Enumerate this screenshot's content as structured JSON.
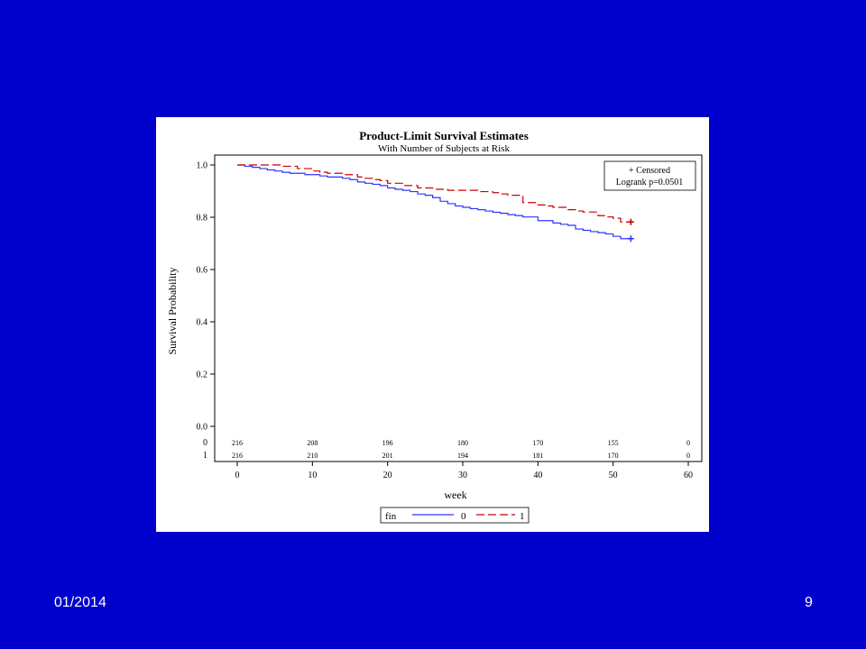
{
  "slide": {
    "background": "#0000cc",
    "footer_date": "01/2014",
    "page_number": "9"
  },
  "chart_data": {
    "type": "line",
    "step": true,
    "title": "Product-Limit Survival Estimates",
    "subtitle": "With Number of Subjects at Risk",
    "xlabel": "week",
    "ylabel": "Survival Probability",
    "xlim": [
      0,
      60
    ],
    "ylim": [
      0.0,
      1.0
    ],
    "xticks": [
      "0",
      "10",
      "20",
      "30",
      "40",
      "50",
      "60"
    ],
    "yticks": [
      "0.0",
      "0.2",
      "0.4",
      "0.6",
      "0.8",
      "1.0"
    ],
    "grid": false,
    "inset_legend": {
      "position": "top-right",
      "censored_label": "+ Censored",
      "logrank_label": "Logrank p=0.0501"
    },
    "legend": {
      "position": "bottom",
      "title": "fin"
    },
    "series": [
      {
        "name": "0",
        "color": "#3333ff",
        "dash": "solid",
        "x": [
          0,
          1,
          2,
          3,
          4,
          5,
          6,
          7,
          8,
          9,
          10,
          11,
          12,
          13,
          14,
          15,
          16,
          17,
          18,
          19,
          20,
          21,
          22,
          23,
          24,
          25,
          26,
          27,
          28,
          29,
          30,
          31,
          32,
          33,
          34,
          35,
          36,
          37,
          38,
          39,
          40,
          41,
          42,
          43,
          44,
          45,
          46,
          47,
          48,
          49,
          50,
          51,
          52
        ],
        "y": [
          1.0,
          0.995,
          0.991,
          0.986,
          0.981,
          0.977,
          0.972,
          0.968,
          0.968,
          0.963,
          0.963,
          0.958,
          0.954,
          0.954,
          0.949,
          0.944,
          0.935,
          0.93,
          0.926,
          0.921,
          0.912,
          0.907,
          0.903,
          0.898,
          0.889,
          0.884,
          0.875,
          0.861,
          0.852,
          0.843,
          0.838,
          0.833,
          0.829,
          0.824,
          0.819,
          0.815,
          0.81,
          0.806,
          0.801,
          0.801,
          0.787,
          0.787,
          0.778,
          0.773,
          0.769,
          0.755,
          0.75,
          0.745,
          0.741,
          0.736,
          0.727,
          0.718,
          0.718
        ],
        "censored_at": 52,
        "censored_y": 0.718
      },
      {
        "name": "1",
        "color": "#cc0000",
        "dash": "dashed",
        "x": [
          0,
          2,
          4,
          6,
          8,
          10,
          11,
          12,
          14,
          16,
          17,
          18,
          19,
          20,
          22,
          24,
          26,
          28,
          30,
          32,
          34,
          35,
          36,
          38,
          40,
          41,
          42,
          44,
          45,
          46,
          48,
          49,
          50,
          51,
          52
        ],
        "y": [
          1.0,
          1.0,
          1.0,
          0.995,
          0.986,
          0.977,
          0.972,
          0.968,
          0.963,
          0.954,
          0.949,
          0.944,
          0.94,
          0.93,
          0.921,
          0.912,
          0.907,
          0.903,
          0.903,
          0.898,
          0.894,
          0.889,
          0.884,
          0.856,
          0.847,
          0.843,
          0.838,
          0.829,
          0.824,
          0.82,
          0.806,
          0.801,
          0.796,
          0.782,
          0.782
        ],
        "censored_at": 52,
        "censored_y": 0.782
      }
    ],
    "at_risk": {
      "groups": [
        {
          "label": "0",
          "counts": [
            "216",
            "208",
            "196",
            "180",
            "170",
            "155",
            "0"
          ]
        },
        {
          "label": "1",
          "counts": [
            "216",
            "210",
            "201",
            "194",
            "181",
            "170",
            "0"
          ]
        }
      ]
    }
  }
}
